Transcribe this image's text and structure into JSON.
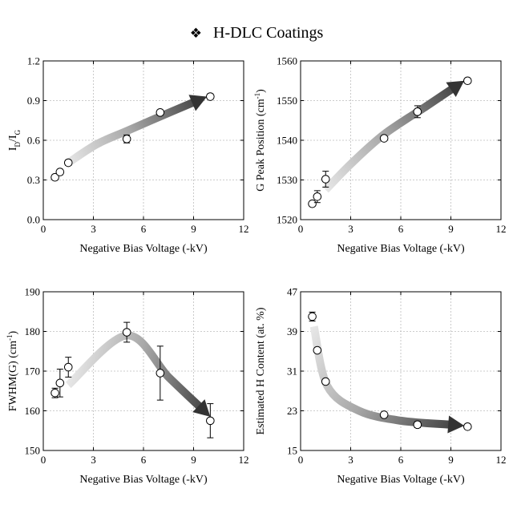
{
  "figure": {
    "title": "H-DLC Coatings",
    "title_glyph": "❖"
  },
  "chart_data": [
    {
      "type": "scatter",
      "title": "",
      "xlabel": "Negative Bias Voltage (-kV)",
      "ylabel": "I_D/I_G",
      "xlim": [
        0,
        12
      ],
      "ylim": [
        0.0,
        1.2
      ],
      "xticks": [
        0,
        3,
        6,
        9,
        12
      ],
      "yticks": [
        0.0,
        0.3,
        0.6,
        0.9,
        1.2
      ],
      "yticks_labels": [
        "0.0",
        "0.3",
        "0.6",
        "0.9",
        "1.2"
      ],
      "grid": true,
      "series": [
        {
          "x": [
            0.7,
            1.0,
            1.5,
            5.0,
            7.0,
            10.0
          ],
          "y": [
            0.32,
            0.36,
            0.43,
            0.61,
            0.81,
            0.93
          ],
          "yerr": [
            0.02,
            0.02,
            0.02,
            0.03,
            0.02,
            0.02
          ]
        }
      ],
      "trend_arrow": [
        [
          1.5,
          0.43
        ],
        [
          3.2,
          0.57
        ],
        [
          5.0,
          0.67
        ],
        [
          7.0,
          0.78
        ],
        [
          9.8,
          0.93
        ]
      ]
    },
    {
      "type": "scatter",
      "title": "",
      "xlabel": "Negative Bias Voltage (-kV)",
      "ylabel": "G Peak Position (cm^-1)",
      "xlim": [
        0,
        12
      ],
      "ylim": [
        1520,
        1560
      ],
      "xticks": [
        0,
        3,
        6,
        9,
        12
      ],
      "yticks": [
        1520,
        1530,
        1540,
        1550,
        1560
      ],
      "yticks_labels": [
        "1520",
        "1530",
        "1540",
        "1550",
        "1560"
      ],
      "grid": true,
      "series": [
        {
          "x": [
            0.7,
            1.0,
            1.5,
            5.0,
            7.0,
            10.0
          ],
          "y": [
            1524.0,
            1525.8,
            1530.2,
            1540.5,
            1547.2,
            1555.0
          ],
          "yerr": [
            0.5,
            1.5,
            2.0,
            0.6,
            1.5,
            0.4
          ]
        }
      ],
      "trend_arrow": [
        [
          1.5,
          1527.5
        ],
        [
          3.0,
          1534.0
        ],
        [
          5.0,
          1541.5
        ],
        [
          7.5,
          1548.5
        ],
        [
          9.8,
          1555.0
        ]
      ]
    },
    {
      "type": "scatter",
      "title": "",
      "xlabel": "Negative Bias Voltage (-kV)",
      "ylabel": "FWHM(G) (cm^-1)",
      "xlim": [
        0,
        12
      ],
      "ylim": [
        150,
        190
      ],
      "xticks": [
        0,
        3,
        6,
        9,
        12
      ],
      "yticks": [
        150,
        160,
        170,
        180,
        190
      ],
      "yticks_labels": [
        "150",
        "160",
        "170",
        "180",
        "190"
      ],
      "grid": true,
      "series": [
        {
          "x": [
            0.7,
            1.0,
            1.5,
            5.0,
            7.0,
            10.0
          ],
          "y": [
            164.5,
            167.0,
            171.0,
            179.8,
            169.5,
            157.5
          ],
          "yerr": [
            1.2,
            3.5,
            2.5,
            2.5,
            6.8,
            4.3
          ]
        }
      ],
      "trend_arrow": [
        [
          1.5,
          166.5
        ],
        [
          5.0,
          179.0
        ],
        [
          7.5,
          168.5
        ],
        [
          10.0,
          158.5
        ]
      ]
    },
    {
      "type": "scatter",
      "title": "",
      "xlabel": "Negative Bias Voltage (-kV)",
      "ylabel": "Estimated H Content (at. %)",
      "xlim": [
        0,
        12
      ],
      "ylim": [
        15,
        47
      ],
      "xticks": [
        0,
        3,
        6,
        9,
        12
      ],
      "yticks": [
        15,
        23,
        31,
        39,
        47
      ],
      "yticks_labels": [
        "15",
        "23",
        "31",
        "39",
        "47"
      ],
      "grid": true,
      "series": [
        {
          "x": [
            0.7,
            1.0,
            1.5,
            5.0,
            7.0,
            10.0
          ],
          "y": [
            42.0,
            35.2,
            28.9,
            22.2,
            20.2,
            19.8
          ],
          "yerr": [
            0.9,
            0.4,
            0.4,
            0.5,
            0.6,
            0.4
          ]
        }
      ],
      "trend_arrow": [
        [
          0.8,
          40.0
        ],
        [
          1.6,
          28.0
        ],
        [
          3.5,
          23.0
        ],
        [
          6.0,
          21.0
        ],
        [
          9.8,
          20.0
        ]
      ]
    }
  ]
}
